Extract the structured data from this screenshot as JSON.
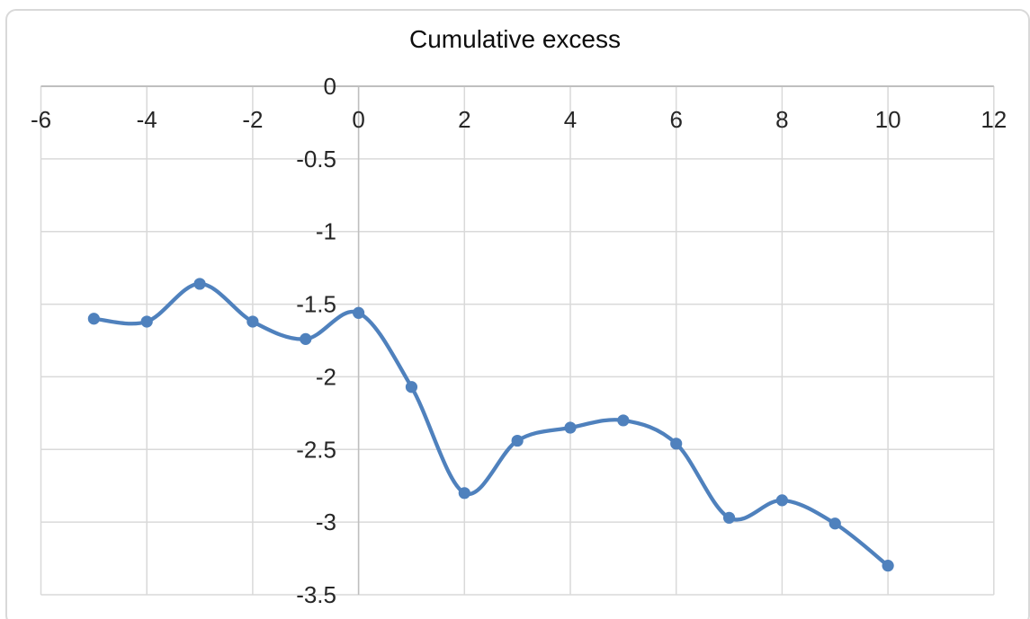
{
  "page": {
    "background": "#ffffff",
    "frame_border_color": "#D9D9D9"
  },
  "chart_data": {
    "type": "line",
    "title": "Cumulative excess",
    "smoothed": true,
    "grid": true,
    "legend": "none",
    "xlabel": "",
    "ylabel": "",
    "xlim": [
      -6,
      12
    ],
    "ylim": [
      -3.5,
      0
    ],
    "x_ticks": [
      -6,
      -4,
      -2,
      0,
      2,
      4,
      6,
      8,
      10,
      12
    ],
    "y_ticks": [
      0,
      -0.5,
      -1,
      -1.5,
      -2,
      -2.5,
      -3,
      -3.5
    ],
    "series": [
      {
        "name": "Cumulative excess",
        "color": "#4F81BD",
        "marker": "circle",
        "x": [
          -5,
          -4,
          -3,
          -2,
          -1,
          0,
          1,
          2,
          3,
          4,
          5,
          6,
          7,
          8,
          9,
          10
        ],
        "y": [
          -1.6,
          -1.62,
          -1.36,
          -1.62,
          -1.74,
          -1.56,
          -2.07,
          -2.8,
          -2.44,
          -2.35,
          -2.3,
          -2.46,
          -2.97,
          -2.85,
          -3.01,
          -3.3
        ]
      }
    ],
    "colors": {
      "gridline": "#D9D9D9",
      "axis_line": "#BFBFBF",
      "tick_label": "#262626",
      "title": "#0d0d0d"
    }
  }
}
